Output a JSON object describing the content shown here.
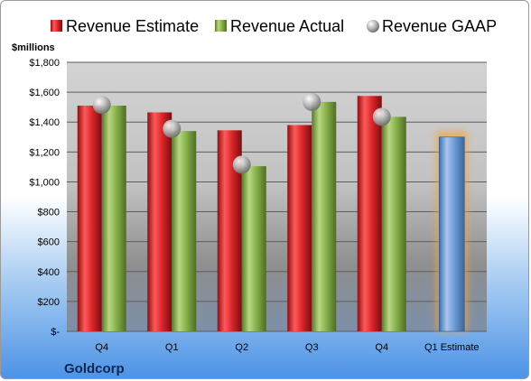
{
  "company": "Goldcorp",
  "chart_data": {
    "type": "bar",
    "unit_label": "$millions",
    "categories": [
      "Q4",
      "Q1",
      "Q2",
      "Q3",
      "Q4",
      "Q1 Estimate"
    ],
    "series": [
      {
        "name": "Revenue Estimate",
        "color": "#d9262b",
        "values": [
          1510,
          1465,
          1345,
          1380,
          1575,
          null
        ]
      },
      {
        "name": "Revenue Actual",
        "color": "#86b04a",
        "values": [
          1510,
          1340,
          1105,
          1535,
          1435,
          null
        ]
      },
      {
        "name": "Revenue GAAP",
        "color": "#a6a6a6",
        "values": [
          1515,
          1355,
          1115,
          1535,
          1435,
          null
        ]
      }
    ],
    "forecast": {
      "category": "Q1 Estimate",
      "value": 1300,
      "color": "#6f9bd6",
      "glow": "#f4a640"
    },
    "ylim": [
      0,
      1800
    ],
    "yticks": [
      "$-",
      "$200",
      "$400",
      "$600",
      "$800",
      "$1,000",
      "$1,200",
      "$1,400",
      "$1,600",
      "$1,800"
    ],
    "grid": true,
    "legend_position": "top"
  }
}
